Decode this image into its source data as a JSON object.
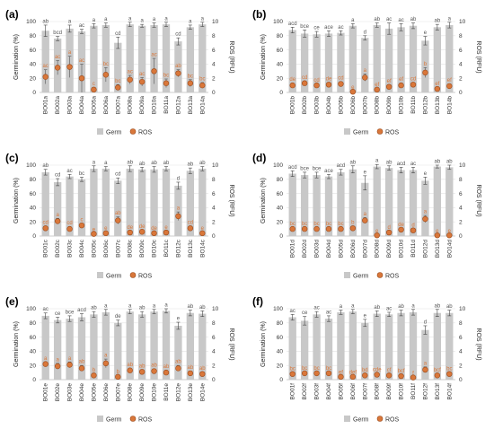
{
  "figure": {
    "colors": {
      "germ": "#c8c8c8",
      "ros": "#d9773a",
      "ros_edge": "#9a4a1c",
      "sig_germ": "#555555",
      "sig_ros": "#d9773a"
    },
    "legend": [
      "Germ",
      "ROS"
    ]
  },
  "chart_data": [
    {
      "panel": "(a)",
      "type": "bar",
      "ylabel": "Germination (%)",
      "y2label": "ROS (RFU)",
      "ylim": [
        0,
        100
      ],
      "y2lim": [
        0,
        10
      ],
      "yticks": [
        "0",
        "20",
        "40",
        "60",
        "80",
        "100"
      ],
      "y2ticks": [
        "0",
        "2",
        "4",
        "6",
        "8",
        "10"
      ],
      "categories": [
        "BO01a",
        "BO02a",
        "BO03a",
        "BO04a",
        "BO05a",
        "BO06a",
        "BO07a",
        "BO08a",
        "BO09a",
        "BO10a",
        "BO11a",
        "BO12a",
        "BO13a",
        "BO14a"
      ],
      "series": [
        {
          "name": "Germ",
          "values": [
            87,
            76,
            90,
            86,
            94,
            95,
            70,
            96,
            94,
            95,
            96,
            72,
            92,
            96
          ],
          "errors": [
            8,
            3,
            5,
            3,
            3,
            3,
            8,
            3,
            2,
            3,
            3,
            5,
            3,
            3
          ],
          "letters": [
            "ab",
            "bcd",
            "a",
            "ac",
            "a",
            "a",
            "cd",
            "a",
            "a",
            "a",
            "a",
            "cd",
            "a",
            "a"
          ]
        },
        {
          "name": "ROS",
          "values": [
            2.2,
            3.5,
            3.6,
            2.0,
            0.4,
            2.5,
            0.7,
            1.8,
            1.5,
            3.0,
            1.3,
            2.7,
            1.3,
            1.0
          ],
          "errors": [
            1.0,
            1.0,
            1.5,
            2.0,
            0.3,
            1.0,
            0.4,
            0.6,
            0.6,
            1.8,
            0.6,
            0.5,
            0.5,
            0.4
          ],
          "letters": [
            "ac",
            "ac",
            "a",
            "ac",
            "c",
            "bc",
            "bc",
            "ac",
            "ac",
            "ac",
            "bc",
            "ab",
            "bc",
            "bc"
          ]
        }
      ]
    },
    {
      "panel": "(b)",
      "type": "bar",
      "ylabel": "Germination (%)",
      "y2label": "ROS (RFU)",
      "ylim": [
        0,
        100
      ],
      "y2lim": [
        0,
        10
      ],
      "yticks": [
        "0",
        "20",
        "40",
        "60",
        "80",
        "100"
      ],
      "y2ticks": [
        "0",
        "2",
        "4",
        "6",
        "8",
        "10"
      ],
      "categories": [
        "BO01b",
        "BO02b",
        "BO03b",
        "BO04b",
        "BO05b",
        "BO06b",
        "BO07b",
        "BO08b",
        "BO09b",
        "BO10b",
        "BO11b",
        "BO12b",
        "BO13b",
        "BO14b"
      ],
      "series": [
        {
          "name": "Germ",
          "values": [
            88,
            83,
            82,
            83,
            84,
            94,
            77,
            95,
            90,
            92,
            94,
            73,
            92,
            95
          ],
          "errors": [
            4,
            5,
            4,
            4,
            3,
            3,
            3,
            3,
            8,
            5,
            4,
            6,
            4,
            4
          ],
          "letters": [
            "acd",
            "bce",
            "ce",
            "ace",
            "ac",
            "a",
            "d",
            "ab",
            "ac",
            "ac",
            "ab",
            "e",
            "ab",
            "a"
          ]
        },
        {
          "name": "ROS",
          "values": [
            1.0,
            1.3,
            1.0,
            1.1,
            1.2,
            0.1,
            2.1,
            0.4,
            0.8,
            1.0,
            1.1,
            2.8,
            0.5,
            0.9
          ],
          "errors": [
            0.3,
            0.3,
            0.2,
            0.3,
            0.3,
            0.1,
            0.5,
            0.2,
            0.3,
            0.3,
            0.3,
            0.7,
            0.2,
            0.3
          ],
          "letters": [
            "de",
            "cd",
            "cd",
            "de",
            "cd",
            "e",
            "a",
            "ef",
            "ef",
            "ef",
            "cd",
            "b",
            "ef",
            "ef"
          ]
        }
      ]
    },
    {
      "panel": "(c)",
      "type": "bar",
      "ylabel": "Germination (%)",
      "y2label": "ROS (RFU)",
      "ylim": [
        0,
        100
      ],
      "y2lim": [
        0,
        10
      ],
      "yticks": [
        "0",
        "20",
        "40",
        "60",
        "80",
        "100"
      ],
      "y2ticks": [
        "0",
        "2",
        "4",
        "6",
        "8",
        "10"
      ],
      "categories": [
        "BO01c",
        "BO02c",
        "BO03c",
        "BO04c",
        "BO05c",
        "BO06c",
        "BO07c",
        "BO08c",
        "BO09c",
        "BO10c",
        "BO11c",
        "BO12c",
        "BO13c",
        "BO14c"
      ],
      "series": [
        {
          "name": "Germ",
          "values": [
            90,
            76,
            84,
            80,
            95,
            95,
            78,
            95,
            94,
            94,
            95,
            71,
            92,
            95
          ],
          "errors": [
            4,
            5,
            3,
            3,
            4,
            3,
            4,
            4,
            3,
            4,
            3,
            5,
            4,
            3
          ],
          "letters": [
            "ab",
            "cd",
            "ac",
            "bc",
            "a",
            "a",
            "cd",
            "ab",
            "ab",
            "ab",
            "ab",
            "d",
            "ab",
            "ab"
          ]
        },
        {
          "name": "ROS",
          "values": [
            1.1,
            2.1,
            1.0,
            1.5,
            0.3,
            0.4,
            2.2,
            0.5,
            0.6,
            0.4,
            0.5,
            2.8,
            1.1,
            0.4
          ],
          "errors": [
            0.3,
            0.4,
            0.3,
            0.3,
            0.1,
            0.2,
            0.5,
            0.2,
            0.2,
            0.2,
            0.2,
            0.6,
            0.3,
            0.2
          ],
          "letters": [
            "cd",
            "a",
            "cd",
            "c",
            "e",
            "e",
            "ab",
            "de",
            "de",
            "de",
            "e",
            "a",
            "cd",
            "e"
          ]
        }
      ]
    },
    {
      "panel": "(d)",
      "type": "bar",
      "ylabel": "Germination (%)",
      "y2label": "ROS (RFU)",
      "ylim": [
        0,
        100
      ],
      "y2lim": [
        0,
        10
      ],
      "yticks": [
        "0",
        "20",
        "40",
        "60",
        "80",
        "100"
      ],
      "y2ticks": [
        "0",
        "2",
        "4",
        "6",
        "8",
        "10"
      ],
      "categories": [
        "BO01d",
        "BO02d",
        "BO03d",
        "BO04d",
        "BO05d",
        "BO06d",
        "BO07d",
        "BO08d",
        "BO09d",
        "BO10d",
        "BO11d",
        "BO12d",
        "BO13d",
        "BO14d"
      ],
      "series": [
        {
          "name": "Germ",
          "values": [
            88,
            86,
            86,
            84,
            90,
            94,
            75,
            98,
            96,
            93,
            93,
            78,
            98,
            97
          ],
          "errors": [
            4,
            4,
            4,
            3,
            4,
            5,
            10,
            3,
            3,
            4,
            4,
            5,
            2,
            3
          ],
          "letters": [
            "acd",
            "bce",
            "bce",
            "ace",
            "acd",
            "ab",
            "e",
            "a",
            "ab",
            "acd",
            "ac",
            "e",
            "ab",
            "ab"
          ]
        },
        {
          "name": "ROS",
          "values": [
            1.0,
            1.0,
            1.0,
            1.0,
            1.0,
            1.1,
            2.2,
            0.1,
            0.5,
            0.9,
            0.8,
            2.4,
            0.1,
            0.1
          ],
          "errors": [
            0.2,
            0.2,
            0.2,
            0.2,
            0.2,
            0.3,
            0.4,
            0.1,
            0.2,
            0.2,
            0.2,
            0.5,
            0.1,
            0.1
          ],
          "letters": [
            "bc",
            "bc",
            "bc",
            "bc",
            "bc",
            "b",
            "a",
            "e",
            "d",
            "de",
            "d",
            "a",
            "e",
            "e"
          ]
        }
      ]
    },
    {
      "panel": "(e)",
      "type": "bar",
      "ylabel": "Germination (%)",
      "y2label": "ROS (RFU)",
      "ylim": [
        0,
        100
      ],
      "y2lim": [
        0,
        10
      ],
      "yticks": [
        "0",
        "20",
        "40",
        "60",
        "80",
        "100"
      ],
      "y2ticks": [
        "0",
        "2",
        "4",
        "6",
        "8",
        "10"
      ],
      "categories": [
        "BO01e",
        "BO02e",
        "BO03e",
        "BO04e",
        "BO05e",
        "BO06e",
        "BO07e",
        "BO08e",
        "BO09e",
        "BO10e",
        "BO11e",
        "BO12e",
        "BO13e",
        "BO14e"
      ],
      "series": [
        {
          "name": "Germ",
          "values": [
            90,
            84,
            86,
            88,
            92,
            95,
            80,
            96,
            92,
            96,
            97,
            76,
            94,
            93
          ],
          "errors": [
            4,
            4,
            4,
            5,
            4,
            4,
            4,
            3,
            4,
            3,
            3,
            5,
            4,
            4
          ],
          "letters": [
            "ac",
            "ce",
            "bce",
            "acd",
            "ab",
            "a",
            "de",
            "a",
            "ab",
            "a",
            "a",
            "e",
            "ab",
            "ab"
          ]
        },
        {
          "name": "ROS",
          "values": [
            2.2,
            1.9,
            2.1,
            1.6,
            0.6,
            2.3,
            0.4,
            1.3,
            1.1,
            1.2,
            1.0,
            1.6,
            0.9,
            0.8
          ],
          "errors": [
            0.3,
            0.4,
            0.4,
            0.4,
            0.2,
            0.6,
            0.2,
            0.3,
            0.3,
            0.3,
            0.3,
            0.4,
            0.3,
            0.3
          ],
          "letters": [
            "a",
            "a",
            "a",
            "ab",
            "b",
            "a",
            "b",
            "ab",
            "ab",
            "ab",
            "ab",
            "ab",
            "ab",
            "ab"
          ]
        }
      ]
    },
    {
      "panel": "(f)",
      "type": "bar",
      "ylabel": "Germination (%)",
      "y2label": "ROS (RFU)",
      "ylim": [
        0,
        100
      ],
      "y2lim": [
        0,
        10
      ],
      "yticks": [
        "0",
        "20",
        "40",
        "60",
        "80",
        "100"
      ],
      "y2ticks": [
        "0",
        "2",
        "4",
        "6",
        "8",
        "10"
      ],
      "categories": [
        "BO01f",
        "BO02f",
        "BO03f",
        "BO04f",
        "BO05f",
        "BO06f",
        "BO07f",
        "BO08f",
        "BO09f",
        "BO10f",
        "BO11f",
        "BO12f",
        "BO13f",
        "BO14f"
      ],
      "series": [
        {
          "name": "Germ",
          "values": [
            88,
            83,
            92,
            86,
            95,
            96,
            80,
            93,
            92,
            94,
            95,
            70,
            94,
            94
          ],
          "errors": [
            4,
            6,
            4,
            4,
            3,
            3,
            5,
            4,
            3,
            4,
            4,
            6,
            5,
            4
          ],
          "letters": [
            "ac",
            "ce",
            "ac",
            "ac",
            "a",
            "a",
            "e",
            "ab",
            "ac",
            "ab",
            "a",
            "d",
            "ab",
            "ab"
          ]
        },
        {
          "name": "ROS",
          "values": [
            0.8,
            0.9,
            0.9,
            0.9,
            0.4,
            0.4,
            0.6,
            0.7,
            0.6,
            0.5,
            0.3,
            1.4,
            0.6,
            0.8
          ],
          "errors": [
            0.2,
            0.2,
            0.2,
            0.2,
            0.1,
            0.1,
            0.2,
            0.2,
            0.2,
            0.2,
            0.1,
            0.4,
            0.2,
            0.2
          ],
          "letters": [
            "bc",
            "bc",
            "bc",
            "bc",
            "ef",
            "def",
            "bd",
            "cde",
            "cf",
            "bcf",
            "f",
            "a",
            "bcf",
            "bc"
          ]
        }
      ]
    }
  ]
}
